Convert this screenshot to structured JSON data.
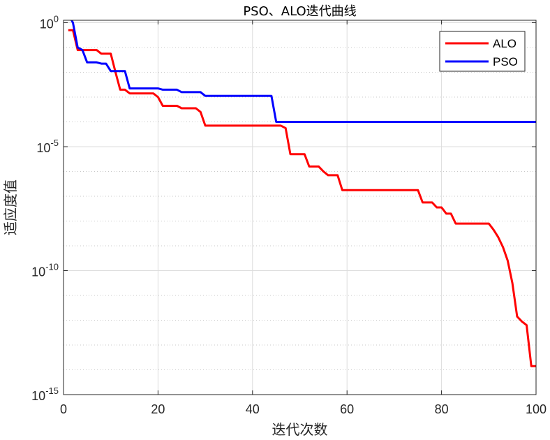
{
  "chart_data": {
    "type": "line",
    "title": "PSO、ALO迭代曲线",
    "xlabel": "迭代次数",
    "ylabel": "适应度值",
    "xlim": [
      0,
      100
    ],
    "ylim_log10": [
      -15,
      0.1
    ],
    "yscale": "log",
    "grid": true,
    "legend_position": "top-right",
    "x_ticks": [
      "0",
      "20",
      "40",
      "60",
      "80",
      "100"
    ],
    "y_ticks": [
      {
        "base": "10",
        "exp": "0",
        "log10": 0
      },
      {
        "base": "10",
        "exp": "-5",
        "log10": -5
      },
      {
        "base": "10",
        "exp": "-10",
        "log10": -10
      },
      {
        "base": "10",
        "exp": "-15",
        "log10": -15
      }
    ],
    "series": [
      {
        "name": "ALO",
        "color": "#ff0000",
        "points": [
          [
            1,
            -0.3
          ],
          [
            2,
            -0.3
          ],
          [
            3,
            -1.1
          ],
          [
            4,
            -1.1
          ],
          [
            7,
            -1.1
          ],
          [
            8,
            -1.25
          ],
          [
            10,
            -1.25
          ],
          [
            11,
            -2.0
          ],
          [
            12,
            -2.7
          ],
          [
            13,
            -2.7
          ],
          [
            14,
            -2.85
          ],
          [
            19,
            -2.85
          ],
          [
            20,
            -3.0
          ],
          [
            21,
            -3.35
          ],
          [
            24,
            -3.35
          ],
          [
            25,
            -3.45
          ],
          [
            28,
            -3.45
          ],
          [
            29,
            -3.6
          ],
          [
            30,
            -4.15
          ],
          [
            46,
            -4.15
          ],
          [
            47,
            -4.25
          ],
          [
            48,
            -5.3
          ],
          [
            51,
            -5.3
          ],
          [
            52,
            -5.8
          ],
          [
            54,
            -5.8
          ],
          [
            55,
            -6.0
          ],
          [
            56,
            -6.15
          ],
          [
            58,
            -6.15
          ],
          [
            59,
            -6.75
          ],
          [
            75,
            -6.75
          ],
          [
            76,
            -7.25
          ],
          [
            78,
            -7.25
          ],
          [
            79,
            -7.45
          ],
          [
            80,
            -7.45
          ],
          [
            81,
            -7.7
          ],
          [
            82,
            -7.7
          ],
          [
            83,
            -8.1
          ],
          [
            90,
            -8.1
          ],
          [
            91,
            -8.35
          ],
          [
            92,
            -8.65
          ],
          [
            93,
            -9.05
          ],
          [
            94,
            -9.6
          ],
          [
            95,
            -10.5
          ],
          [
            96,
            -11.85
          ],
          [
            97,
            -12.05
          ],
          [
            98,
            -12.2
          ],
          [
            99,
            -13.85
          ],
          [
            100,
            -13.85
          ]
        ]
      },
      {
        "name": "PSO",
        "color": "#0000ff",
        "points": [
          [
            1,
            0.35
          ],
          [
            2,
            0.0
          ],
          [
            3,
            -1.0
          ],
          [
            4,
            -1.1
          ],
          [
            5,
            -1.6
          ],
          [
            7,
            -1.6
          ],
          [
            8,
            -1.65
          ],
          [
            9,
            -1.65
          ],
          [
            10,
            -1.95
          ],
          [
            11,
            -1.95
          ],
          [
            13,
            -1.95
          ],
          [
            14,
            -2.65
          ],
          [
            20,
            -2.65
          ],
          [
            21,
            -2.7
          ],
          [
            24,
            -2.7
          ],
          [
            25,
            -2.8
          ],
          [
            29,
            -2.8
          ],
          [
            30,
            -2.95
          ],
          [
            44,
            -2.95
          ],
          [
            45,
            -4.0
          ],
          [
            100,
            -4.0
          ]
        ]
      }
    ]
  }
}
